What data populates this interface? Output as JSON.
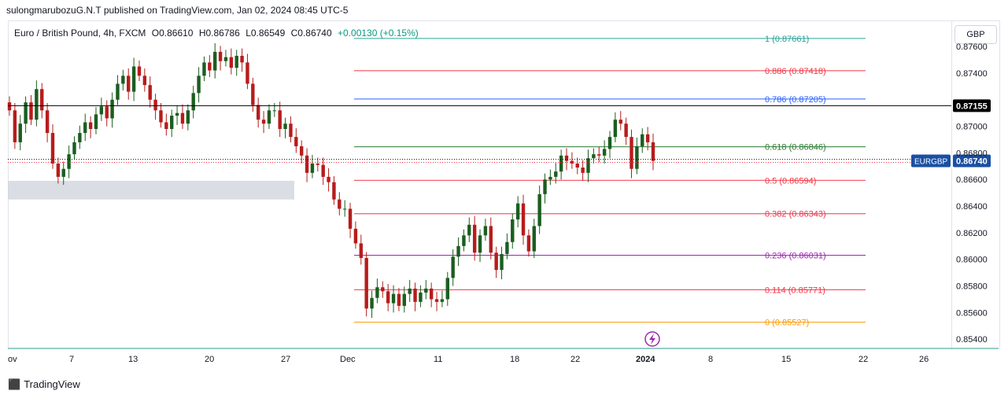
{
  "header": {
    "published": "sulongmarubozuG.N.T published on TradingView.com, Jan 02, 2024 08:45 UTC-5"
  },
  "symbol": {
    "name": "Euro / British Pound, 4h, FXCM",
    "open_label": "O0.86610",
    "high_label": "H0.86786",
    "low_label": "L0.86549",
    "close_label": "C0.86740",
    "change_label": "+0.00130 (+0.15%)"
  },
  "currency": "GBP",
  "footer": {
    "brand": "TradingView"
  },
  "colors": {
    "up": "#089981",
    "down": "#f23645",
    "candle_up": "#1b5e20",
    "candle_down": "#b71c1c",
    "ticker_badge": "#1e53e5"
  },
  "chart_data": {
    "type": "candlestick",
    "ylim": [
      0.8533,
      0.8779
    ],
    "y_ticks": [
      "0.87600",
      "0.87400",
      "0.87200",
      "0.87000",
      "0.86800",
      "0.86600",
      "0.86400",
      "0.86200",
      "0.86000",
      "0.85800",
      "0.85600",
      "0.85400"
    ],
    "x_ticks": [
      "ov",
      "7",
      "13",
      "20",
      "27",
      "Dec",
      "11",
      "18",
      "22",
      "2024",
      "8",
      "15",
      "22",
      "26"
    ],
    "horizontal_line": {
      "value": 0.87155,
      "label": "0.87155"
    },
    "last_price": {
      "symbol": "EURGBP",
      "value": 0.8674,
      "label": "0.86740"
    },
    "demand_zone": {
      "from": 0.8645,
      "to": 0.8659
    },
    "fibonacci": [
      {
        "label": "1 (0.87661)",
        "value": 0.87661,
        "color": "#26a69a"
      },
      {
        "label": "0.886 (0.87418)",
        "value": 0.87418,
        "color": "#f23645"
      },
      {
        "label": "0.786 (0.87205)",
        "value": 0.87205,
        "color": "#2962ff"
      },
      {
        "label": "0.618 (0.86846)",
        "value": 0.86846,
        "color": "#2e7d32"
      },
      {
        "label": "0.5 (0.86594)",
        "value": 0.86594,
        "color": "#f23645"
      },
      {
        "label": "0.382 (0.86343)",
        "value": 0.86343,
        "color": "#e53950"
      },
      {
        "label": "0.236 (0.86031)",
        "value": 0.86031,
        "color": "#9c27b0"
      },
      {
        "label": "0.114 (0.85771)",
        "value": 0.85771,
        "color": "#f23645"
      },
      {
        "label": "0 (0.85527)",
        "value": 0.85527,
        "color": "#ff9800"
      }
    ],
    "close_path": [
      0.8712,
      0.8688,
      0.8702,
      0.8718,
      0.8705,
      0.8728,
      0.8712,
      0.8695,
      0.8672,
      0.8662,
      0.8668,
      0.8679,
      0.8688,
      0.8695,
      0.8703,
      0.8698,
      0.8709,
      0.8715,
      0.8706,
      0.872,
      0.8732,
      0.8738,
      0.8726,
      0.8745,
      0.8738,
      0.8731,
      0.872,
      0.8712,
      0.8703,
      0.8698,
      0.8708,
      0.871,
      0.8702,
      0.8712,
      0.8725,
      0.8738,
      0.8748,
      0.8742,
      0.8756,
      0.8749,
      0.8752,
      0.8744,
      0.8753,
      0.8748,
      0.8732,
      0.8716,
      0.8705,
      0.8702,
      0.8712,
      0.8712,
      0.8698,
      0.8702,
      0.8692,
      0.8685,
      0.8678,
      0.8665,
      0.8672,
      0.8671,
      0.8662,
      0.8658,
      0.8645,
      0.8638,
      0.8638,
      0.8623,
      0.8612,
      0.8601,
      0.8563,
      0.8571,
      0.8579,
      0.8576,
      0.8567,
      0.8574,
      0.8565,
      0.8574,
      0.8578,
      0.8568,
      0.8575,
      0.8578,
      0.857,
      0.8568,
      0.857,
      0.8586,
      0.8602,
      0.861,
      0.8618,
      0.8626,
      0.8605,
      0.8618,
      0.8625,
      0.8605,
      0.8592,
      0.8604,
      0.8613,
      0.863,
      0.8642,
      0.8618,
      0.8606,
      0.8625,
      0.8649,
      0.866,
      0.8662,
      0.8666,
      0.8678,
      0.8674,
      0.8672,
      0.8669,
      0.8665,
      0.8676,
      0.8679,
      0.8678,
      0.8683,
      0.8692,
      0.8705,
      0.8702,
      0.8692,
      0.8668,
      0.8685,
      0.8694,
      0.8688,
      0.8674
    ]
  }
}
